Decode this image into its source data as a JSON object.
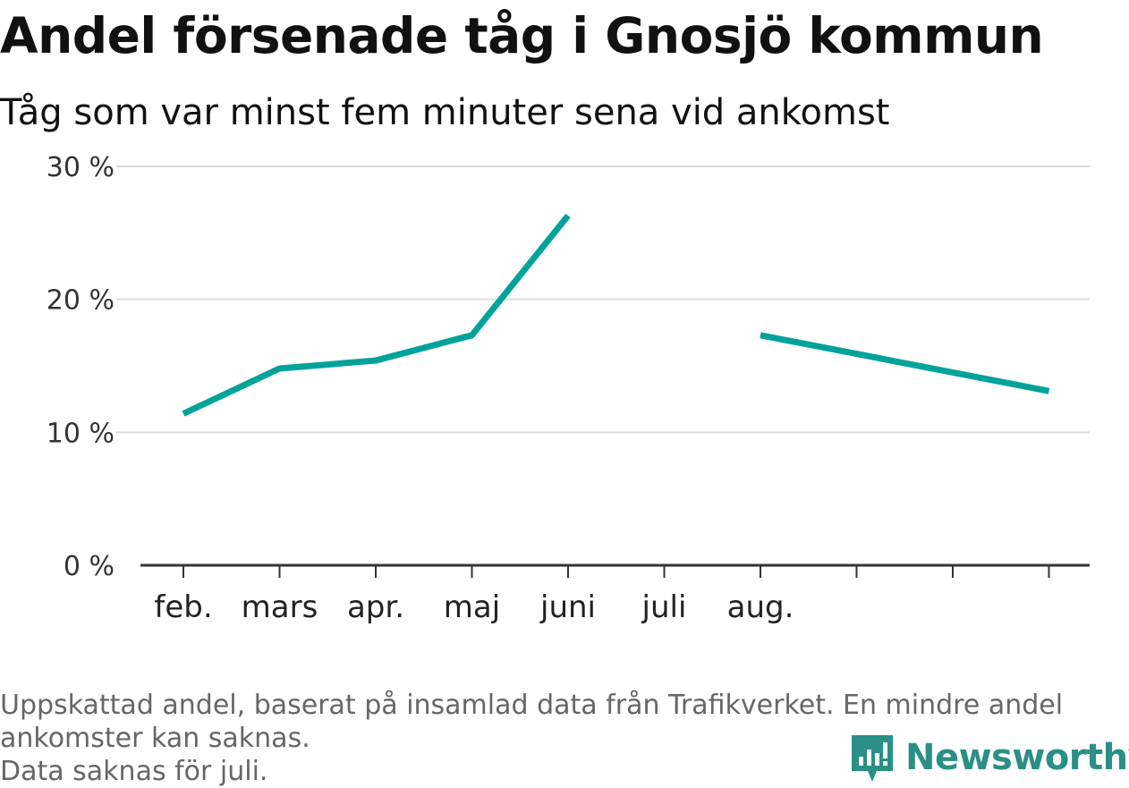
{
  "header": {
    "title": "Andel försenade tåg i Gnosjö kommun",
    "subtitle": "Tåg som var minst fem minuter sena vid ankomst"
  },
  "chart_data": {
    "type": "line",
    "categories": [
      "feb.",
      "mars",
      "apr.",
      "maj",
      "juni",
      "juli",
      "aug.",
      "",
      "",
      ""
    ],
    "series": [
      {
        "values": [
          11.4,
          14.8,
          15.4,
          17.3,
          26.3,
          null,
          17.3,
          15.9,
          14.5,
          13.1
        ],
        "color": "#00a39a"
      }
    ],
    "ylim": [
      0,
      30
    ],
    "yticks": [
      "0 %",
      "10 %",
      "20 %",
      "30 %"
    ],
    "ytick_values": [
      0,
      10,
      20,
      30
    ],
    "grid": true,
    "colors": {
      "grid": "#dddddd",
      "axis": "#333333"
    }
  },
  "footer": {
    "note_line1": "Uppskattad andel, baserat på insamlad data från Trafikverket. En mindre andel",
    "note_line2": "ankomster kan saknas.",
    "note_line3": "Data saknas för juli.",
    "brand": "Newsworthy",
    "brand_icon": "newsworthy-logo-icon",
    "brand_color": "#2a8f86"
  }
}
